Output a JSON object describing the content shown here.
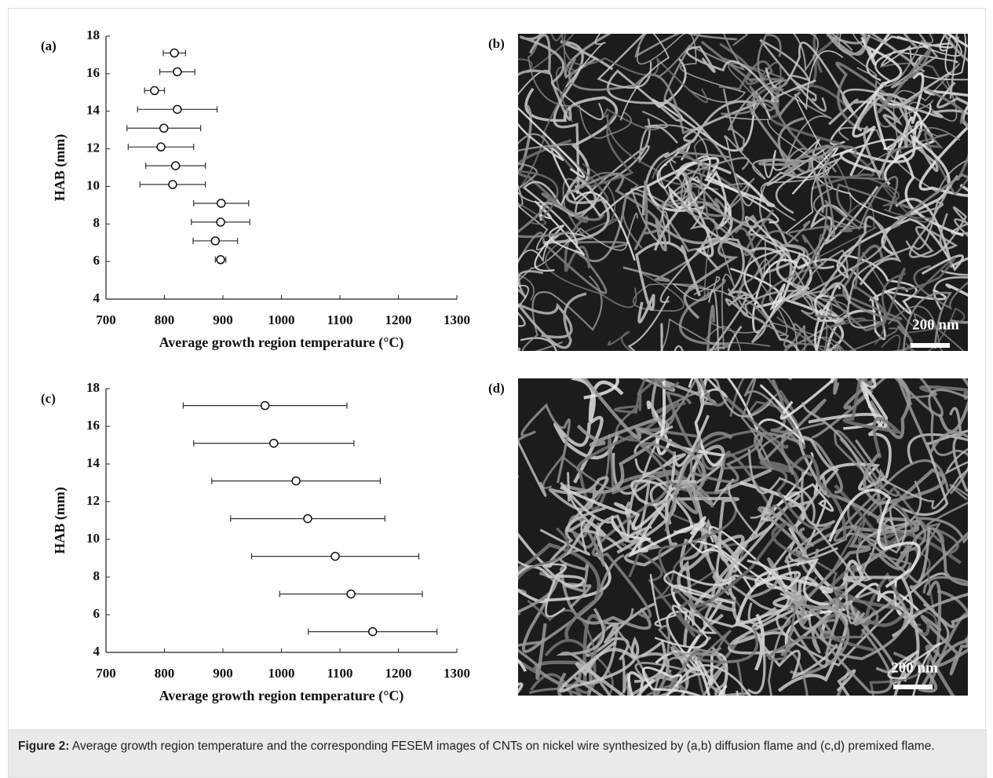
{
  "chart_data": [
    {
      "type": "scatter",
      "panel_label": "(a)",
      "xlabel": "Average growth region temperature (°C)",
      "ylabel": "HAB (mm)",
      "xlim": [
        700,
        1300
      ],
      "ylim": [
        4,
        18
      ],
      "xticks": [
        700,
        800,
        900,
        1000,
        1100,
        1200,
        1300
      ],
      "yticks": [
        4,
        6,
        8,
        10,
        12,
        14,
        16,
        18
      ],
      "x": [
        817,
        822,
        783,
        822,
        799,
        794,
        819,
        814,
        897,
        896,
        887,
        896
      ],
      "y": [
        17.1,
        16.1,
        15.1,
        14.1,
        13.1,
        12.1,
        11.1,
        10.1,
        9.1,
        8.1,
        7.1,
        6.1
      ],
      "xerr": [
        19,
        30,
        17,
        68,
        63,
        56,
        51,
        56,
        47,
        50,
        38,
        9
      ],
      "color": "#333333"
    },
    {
      "type": "scatter",
      "panel_label": "(c)",
      "xlabel": "Average growth region temperature (°C)",
      "ylabel": "HAB (mm)",
      "xlim": [
        700,
        1300
      ],
      "ylim": [
        4,
        18
      ],
      "xticks": [
        700,
        800,
        900,
        1000,
        1100,
        1200,
        1300
      ],
      "yticks": [
        4,
        6,
        8,
        10,
        12,
        14,
        16,
        18
      ],
      "x": [
        972,
        987,
        1025,
        1045,
        1092,
        1119,
        1156
      ],
      "y": [
        17.1,
        15.1,
        13.1,
        11.1,
        9.1,
        7.1,
        5.1
      ],
      "xerr": [
        140,
        137,
        144,
        132,
        143,
        122,
        110
      ],
      "color": "#333333"
    }
  ],
  "images": [
    {
      "panel_label": "(b)",
      "scale": "200 nm"
    },
    {
      "panel_label": "(d)",
      "scale": "200 nm"
    }
  ],
  "caption": {
    "label": "Figure 2:",
    "text": " Average growth region temperature and the corresponding FESEM images of CNTs on nickel wire synthesized by (a,b) diffusion flame and (c,d) premixed flame."
  }
}
